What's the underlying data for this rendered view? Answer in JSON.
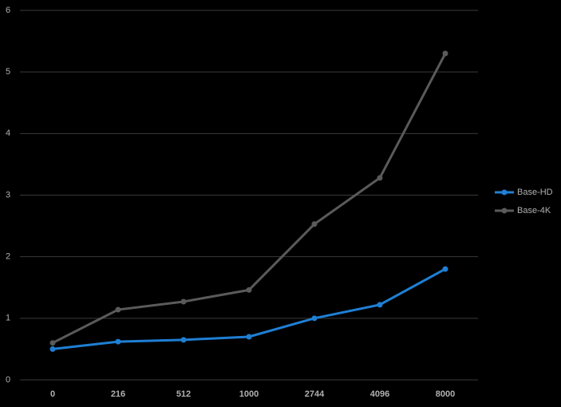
{
  "chart_data": {
    "type": "line",
    "categories": [
      "0",
      "216",
      "512",
      "1000",
      "2744",
      "4096",
      "8000"
    ],
    "series": [
      {
        "name": "Base-HD",
        "color": "#1f7fd4",
        "values": [
          0.5,
          0.62,
          0.65,
          0.7,
          1.0,
          1.22,
          1.8
        ]
      },
      {
        "name": "Base-4K",
        "color": "#5a5a5a",
        "values": [
          0.6,
          1.14,
          1.27,
          1.46,
          2.53,
          3.28,
          5.3
        ]
      }
    ],
    "ylim": [
      0,
      6
    ],
    "yticks": [
      0,
      1,
      2,
      3,
      4,
      5,
      6
    ],
    "grid": true,
    "legend": "right"
  }
}
